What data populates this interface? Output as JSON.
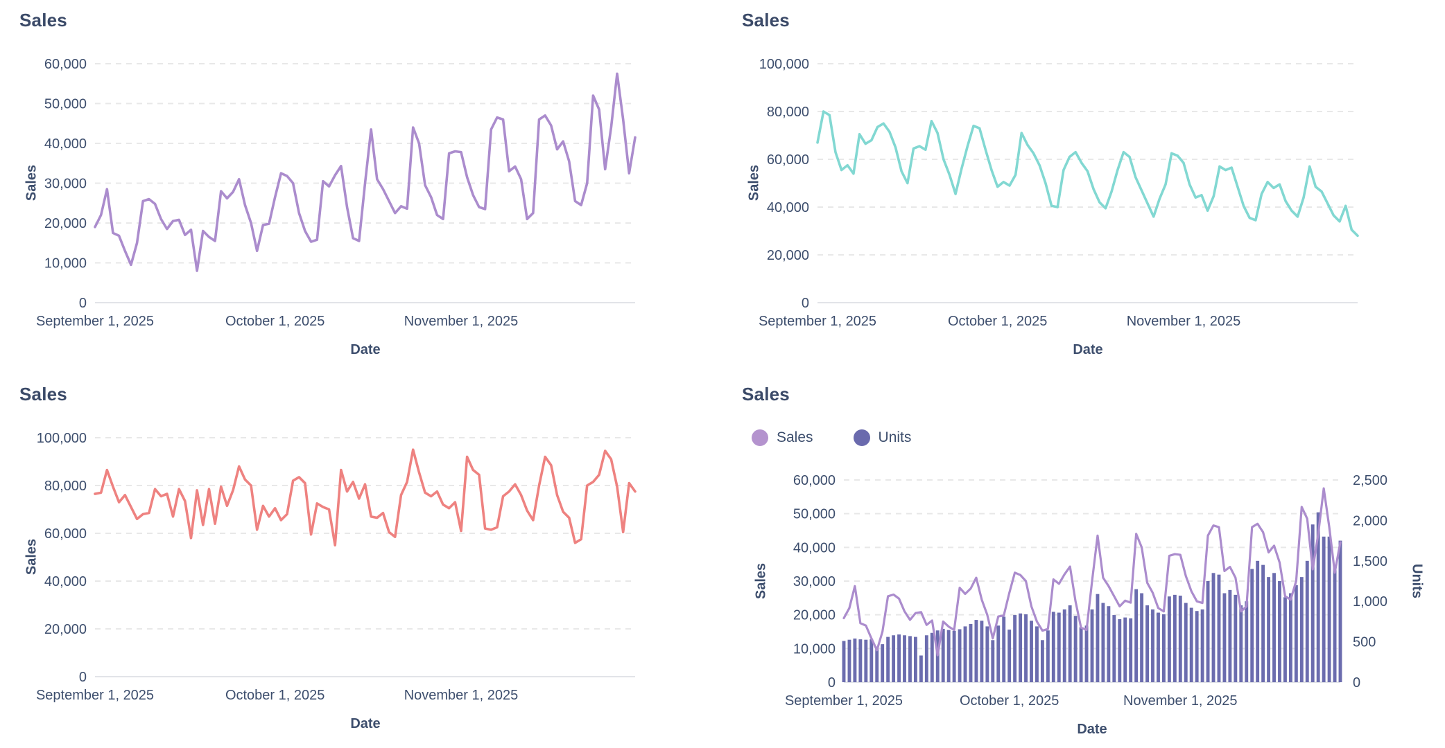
{
  "colors": {
    "text": "#3d4e6d",
    "title": "#3b4a68",
    "gridline": "#e8e8e8",
    "baseline": "#e2e4e8",
    "purple_line": "#ab8ccd",
    "teal_line": "#82d8d2",
    "red_line": "#ee8280",
    "indigo_bar": "#6b6cae"
  },
  "chart_data": [
    {
      "id": "sales-trend-up",
      "type": "line",
      "title": "Sales",
      "xlabel": "Date",
      "ylabel": "Sales",
      "line_color": "#ab8ccd",
      "ylim": [
        0,
        60000
      ],
      "yticks": [
        0,
        10000,
        20000,
        30000,
        40000,
        50000,
        60000
      ],
      "x_days": [
        0,
        90
      ],
      "xticks": [
        {
          "day": 0,
          "label": "September 1, 2025"
        },
        {
          "day": 30,
          "label": "October 1, 2025"
        },
        {
          "day": 61,
          "label": "November 1, 2025"
        }
      ],
      "grid": "dashed-horizontal",
      "values": [
        19000,
        22000,
        28500,
        17500,
        16800,
        13000,
        9500,
        15000,
        25500,
        26000,
        24800,
        21000,
        18500,
        20500,
        20800,
        17000,
        18300,
        8000,
        18000,
        16500,
        15500,
        28000,
        26200,
        27800,
        31000,
        24500,
        20000,
        13000,
        19500,
        19800,
        26500,
        32500,
        31800,
        30000,
        22500,
        18000,
        15300,
        15800,
        30500,
        29200,
        32000,
        34300,
        24000,
        16200,
        15500,
        30000,
        43500,
        31000,
        28500,
        25500,
        22500,
        24200,
        23600,
        44000,
        40000,
        29500,
        26500,
        22000,
        21000,
        37500,
        38000,
        37800,
        31500,
        27000,
        24000,
        23500,
        43500,
        46500,
        46000,
        33000,
        34200,
        31000,
        21000,
        22500,
        46000,
        47000,
        44500,
        38500,
        40500,
        35500,
        25500,
        24500,
        30000,
        52000,
        48500,
        33500,
        44000,
        57500,
        46000,
        32500,
        41500
      ]
    },
    {
      "id": "sales-trend-down",
      "type": "line",
      "title": "Sales",
      "xlabel": "Date",
      "ylabel": "Sales",
      "line_color": "#82d8d2",
      "ylim": [
        0,
        100000
      ],
      "yticks": [
        0,
        20000,
        40000,
        60000,
        80000,
        100000
      ],
      "x_days": [
        0,
        90
      ],
      "xticks": [
        {
          "day": 0,
          "label": "September 1, 2025"
        },
        {
          "day": 30,
          "label": "October 1, 2025"
        },
        {
          "day": 61,
          "label": "November 1, 2025"
        }
      ],
      "grid": "dashed-horizontal",
      "values": [
        67000,
        80000,
        78500,
        63000,
        55500,
        57500,
        54000,
        70500,
        66500,
        68000,
        73500,
        75000,
        71500,
        65000,
        55000,
        50000,
        64500,
        65500,
        64000,
        76000,
        71000,
        60000,
        53500,
        45500,
        56000,
        65500,
        74000,
        73000,
        64000,
        55500,
        48500,
        50500,
        49000,
        53500,
        71000,
        66000,
        62500,
        57500,
        50000,
        40500,
        40000,
        55500,
        61000,
        63000,
        58500,
        55000,
        47500,
        42000,
        39500,
        46500,
        55500,
        63000,
        61000,
        52500,
        47000,
        41500,
        36000,
        43500,
        49500,
        62500,
        61500,
        58500,
        49500,
        44000,
        45000,
        38500,
        44500,
        57000,
        55500,
        56500,
        48500,
        40500,
        35500,
        34500,
        45500,
        50500,
        48000,
        49500,
        42500,
        38500,
        36000,
        44000,
        57000,
        48500,
        46500,
        41500,
        36500,
        34000,
        40500,
        30500,
        28000
      ]
    },
    {
      "id": "sales-stationary",
      "type": "line",
      "title": "Sales",
      "xlabel": "Date",
      "ylabel": "Sales",
      "line_color": "#ee8280",
      "ylim": [
        0,
        100000
      ],
      "yticks": [
        0,
        20000,
        40000,
        60000,
        80000,
        100000
      ],
      "x_days": [
        0,
        90
      ],
      "xticks": [
        {
          "day": 0,
          "label": "September 1, 2025"
        },
        {
          "day": 30,
          "label": "October 1, 2025"
        },
        {
          "day": 61,
          "label": "November 1, 2025"
        }
      ],
      "grid": "dashed-horizontal",
      "values": [
        76500,
        77000,
        86500,
        79500,
        73000,
        76000,
        71000,
        66000,
        68000,
        68500,
        78500,
        75500,
        76500,
        67000,
        78500,
        73500,
        58000,
        78000,
        63500,
        78500,
        64000,
        79500,
        71500,
        78000,
        88000,
        82500,
        80000,
        61500,
        71500,
        67000,
        70500,
        65500,
        68000,
        82000,
        83500,
        81000,
        59500,
        72500,
        71000,
        70000,
        55000,
        86500,
        77500,
        81500,
        74500,
        80500,
        67000,
        66500,
        68500,
        60500,
        58500,
        76000,
        81500,
        95000,
        85500,
        77000,
        75500,
        77500,
        72000,
        70500,
        73000,
        61000,
        92000,
        86500,
        84500,
        62000,
        61500,
        62500,
        75500,
        77500,
        80500,
        76000,
        69500,
        65500,
        80000,
        92000,
        88500,
        76000,
        69000,
        66500,
        56000,
        57500,
        80000,
        81500,
        84500,
        94500,
        91000,
        79500,
        60500,
        81000,
        77500
      ]
    },
    {
      "id": "sales-units-combo",
      "type": "combo",
      "title": "Sales",
      "xlabel": "Date",
      "ylabel_left": "Sales",
      "ylabel_right": "Units",
      "ylim_left": [
        0,
        60000
      ],
      "yticks_left": [
        0,
        10000,
        20000,
        30000,
        40000,
        50000,
        60000
      ],
      "ylim_right": [
        0,
        2500
      ],
      "yticks_right": [
        0,
        500,
        1000,
        1500,
        2000,
        2500
      ],
      "x_days": [
        0,
        90
      ],
      "xticks": [
        {
          "day": 0,
          "label": "September 1, 2025"
        },
        {
          "day": 30,
          "label": "October 1, 2025"
        },
        {
          "day": 61,
          "label": "November 1, 2025"
        }
      ],
      "grid": "dashed-horizontal",
      "legend": [
        {
          "label": "Sales",
          "color": "#b493ce",
          "type": "line"
        },
        {
          "label": "Units",
          "color": "#6a6aad",
          "type": "bar"
        }
      ],
      "series": [
        {
          "name": "Units",
          "type": "bar",
          "axis": "right",
          "color": "#6b6cae",
          "values": [
            510,
            525,
            540,
            530,
            525,
            530,
            440,
            470,
            560,
            580,
            590,
            580,
            570,
            560,
            330,
            580,
            610,
            640,
            660,
            645,
            635,
            655,
            690,
            720,
            770,
            760,
            690,
            520,
            700,
            810,
            650,
            830,
            850,
            840,
            760,
            690,
            520,
            640,
            870,
            860,
            900,
            950,
            820,
            680,
            700,
            900,
            1090,
            980,
            940,
            830,
            780,
            800,
            790,
            1150,
            1100,
            950,
            900,
            860,
            840,
            1060,
            1080,
            1070,
            980,
            920,
            880,
            900,
            1250,
            1350,
            1330,
            1100,
            1140,
            1080,
            950,
            1000,
            1400,
            1500,
            1450,
            1300,
            1350,
            1250,
            1050,
            1100,
            1200,
            1300,
            1500,
            1950,
            2100,
            1800,
            1800,
            1450,
            1750
          ]
        },
        {
          "name": "Sales",
          "type": "line",
          "axis": "left",
          "color": "#ab8ccd",
          "values": [
            19000,
            22000,
            28500,
            17500,
            16800,
            13000,
            9500,
            15000,
            25500,
            26000,
            24800,
            21000,
            18500,
            20500,
            20800,
            17000,
            18300,
            8000,
            18000,
            16500,
            15500,
            28000,
            26200,
            27800,
            31000,
            24500,
            20000,
            13000,
            19500,
            19800,
            26500,
            32500,
            31800,
            30000,
            22500,
            18000,
            15300,
            15800,
            30500,
            29200,
            32000,
            34300,
            24000,
            16200,
            15500,
            30000,
            43500,
            31000,
            28500,
            25500,
            22500,
            24200,
            23600,
            44000,
            40000,
            29500,
            26500,
            22000,
            21000,
            37500,
            38000,
            37800,
            31500,
            27000,
            24000,
            23500,
            43500,
            46500,
            46000,
            33000,
            34200,
            31000,
            21000,
            22500,
            46000,
            47000,
            44500,
            38500,
            40500,
            35500,
            25500,
            24500,
            30000,
            52000,
            48500,
            33500,
            44000,
            57500,
            46000,
            32500,
            41500
          ]
        }
      ]
    }
  ]
}
